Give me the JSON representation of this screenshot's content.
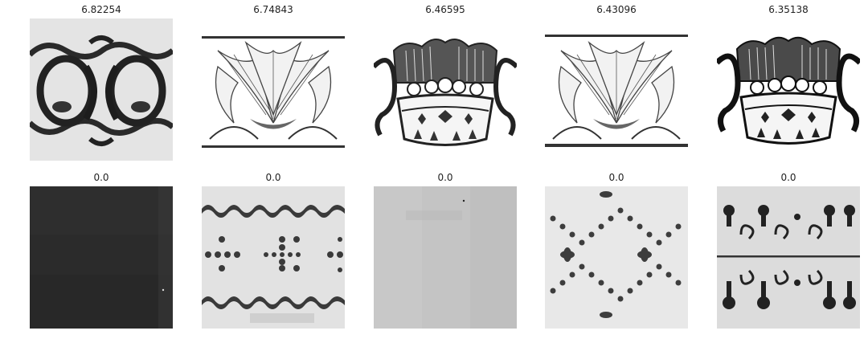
{
  "grid": {
    "rows": [
      {
        "cells": [
          {
            "score": "6.82254",
            "image": "braided-scroll-ornament"
          },
          {
            "score": "6.74843",
            "image": "acanthus-leaf-headpiece"
          },
          {
            "score": "6.46595",
            "image": "crown-ornament"
          },
          {
            "score": "6.43096",
            "image": "acanthus-leaf-headpiece"
          },
          {
            "score": "6.35138",
            "image": "crown-ornament"
          }
        ]
      },
      {
        "cells": [
          {
            "score": "0.0",
            "image": "dark-texture"
          },
          {
            "score": "0.0",
            "image": "fleuron-border-pattern"
          },
          {
            "score": "0.0",
            "image": "gray-paper-texture"
          },
          {
            "score": "0.0",
            "image": "diamond-lattice-pattern"
          },
          {
            "score": "0.0",
            "image": "ornamental-type-rows"
          }
        ]
      }
    ]
  }
}
